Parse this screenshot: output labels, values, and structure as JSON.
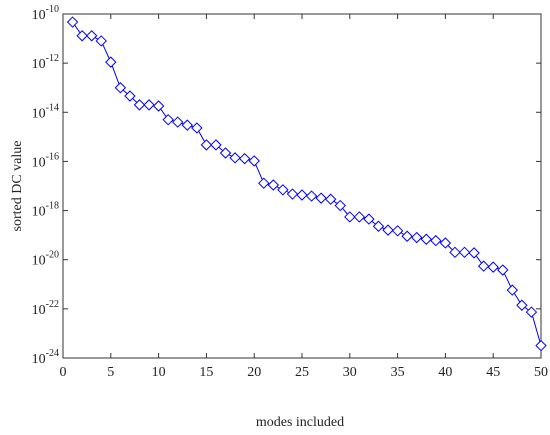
{
  "chart_data": {
    "type": "line",
    "xlabel": "modes included",
    "ylabel": "sorted DC value",
    "log_y": true,
    "grid": false,
    "marker": "diamond",
    "x": [
      1,
      2,
      3,
      4,
      5,
      6,
      7,
      8,
      9,
      10,
      11,
      12,
      13,
      14,
      15,
      16,
      17,
      18,
      19,
      20,
      21,
      22,
      23,
      24,
      25,
      26,
      27,
      28,
      29,
      30,
      31,
      32,
      33,
      34,
      35,
      36,
      37,
      38,
      39,
      40,
      41,
      42,
      43,
      44,
      45,
      46,
      47,
      48,
      49,
      50
    ],
    "series": [
      {
        "color": "#0000ff",
        "values": [
          4.7e-11,
          1.3e-11,
          1.3e-11,
          8e-12,
          1.1e-12,
          1e-13,
          4.6e-14,
          2e-14,
          2e-14,
          1.8e-14,
          5e-15,
          4e-15,
          3e-15,
          2.3e-15,
          4.7e-16,
          4.7e-16,
          2.2e-16,
          1.4e-16,
          1.3e-16,
          1.05e-16,
          1.3e-17,
          1.1e-17,
          7e-18,
          4.7e-18,
          4.3e-18,
          3.9e-18,
          3.2e-18,
          2.9e-18,
          1.6e-18,
          5.5e-19,
          5.5e-19,
          4.5e-19,
          2.3e-19,
          1.6e-19,
          1.5e-19,
          9e-20,
          8e-20,
          6.8e-20,
          6e-20,
          4.8e-20,
          2e-20,
          2e-20,
          1.9e-20,
          5.5e-21,
          5e-21,
          3.8e-21,
          5.8e-22,
          1.4e-22,
          7.4e-23,
          3.2e-24
        ]
      }
    ],
    "xlim": [
      0,
      50
    ],
    "xticks": [
      0,
      5,
      10,
      15,
      20,
      25,
      30,
      35,
      40,
      45,
      50
    ],
    "ylim": [
      1e-24,
      1e-10
    ],
    "yticks": [
      {
        "value": 1e-10,
        "label": "10",
        "exponent": "-10"
      },
      {
        "value": 1e-12,
        "label": "10",
        "exponent": "-12"
      },
      {
        "value": 1e-14,
        "label": "10",
        "exponent": "-14"
      },
      {
        "value": 1e-16,
        "label": "10",
        "exponent": "-16"
      },
      {
        "value": 1e-18,
        "label": "10",
        "exponent": "-18"
      },
      {
        "value": 1e-20,
        "label": "10",
        "exponent": "-20"
      },
      {
        "value": 1e-22,
        "label": "10",
        "exponent": "-22"
      },
      {
        "value": 1e-24,
        "label": "10",
        "exponent": "-24"
      }
    ]
  }
}
